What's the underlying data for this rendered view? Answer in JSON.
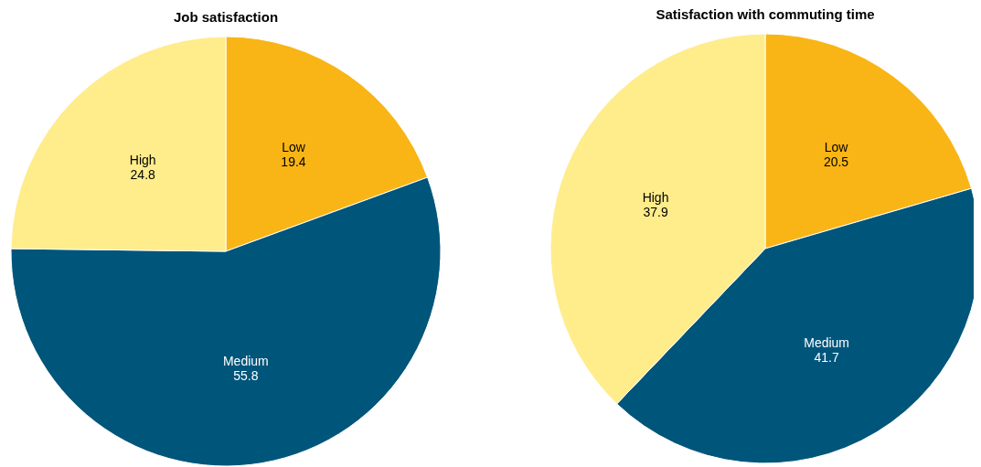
{
  "chart_data": [
    {
      "type": "pie",
      "title": "Job satisfaction",
      "categories": [
        "Low",
        "Medium",
        "High"
      ],
      "values": [
        19.4,
        55.8,
        24.8
      ],
      "colors": [
        "#f9b515",
        "#00557a",
        "#ffec8b"
      ],
      "data_labels": true
    },
    {
      "type": "pie",
      "title": "Satisfaction with commuting time",
      "categories": [
        "Low",
        "Medium",
        "High"
      ],
      "values": [
        20.5,
        41.7,
        37.9
      ],
      "colors": [
        "#f9b515",
        "#00557a",
        "#ffec8b"
      ],
      "data_labels": true
    }
  ]
}
